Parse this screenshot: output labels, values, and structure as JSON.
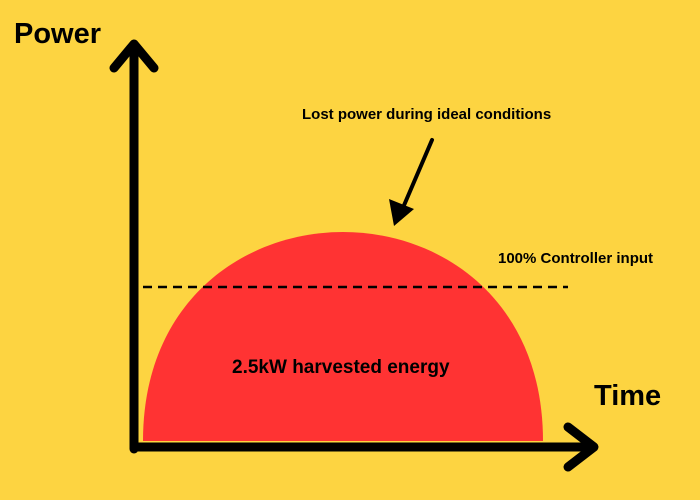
{
  "diagram": {
    "y_axis_label": "Power",
    "x_axis_label": "Time",
    "annotations": {
      "lost_power": "Lost power during ideal conditions",
      "controller_input": "100% Controller input",
      "harvested_energy": "2.5kW harvested energy"
    }
  },
  "colors": {
    "background": "#FDD441",
    "curve_fill": "#FF3333",
    "axes": "#000000",
    "text": "#000000"
  }
}
